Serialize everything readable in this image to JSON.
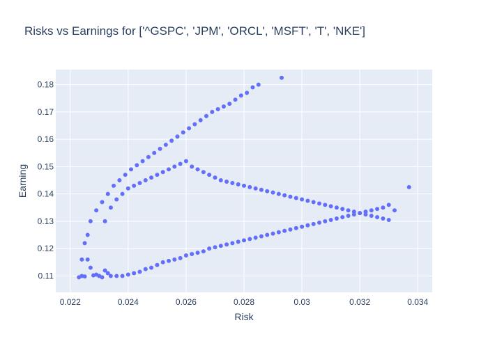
{
  "chart_data": {
    "type": "scatter",
    "title": "Risks vs Earnings for ['^GSPC', 'JPM', 'ORCL', 'MSFT', 'T', 'NKE']",
    "xlabel": "Risk",
    "ylabel": "Earning",
    "xlim": [
      0.0215,
      0.0345
    ],
    "ylim": [
      0.104,
      0.1855
    ],
    "x_ticks": [
      0.022,
      0.024,
      0.026,
      0.028,
      0.03,
      0.032,
      0.034
    ],
    "x_tick_labels": [
      "0.022",
      "0.024",
      "0.026",
      "0.028",
      "0.03",
      "0.032",
      "0.034"
    ],
    "y_ticks": [
      0.11,
      0.12,
      0.13,
      0.14,
      0.15,
      0.16,
      0.17,
      0.18
    ],
    "y_tick_labels": [
      "0.11",
      "0.12",
      "0.13",
      "0.14",
      "0.15",
      "0.16",
      "0.17",
      "0.18"
    ],
    "grid": true,
    "marker_color": "#636efa",
    "plot_background": "#e5ecf6",
    "series": [
      {
        "x": [
          0.0223,
          0.0224,
          0.0225,
          0.0226,
          0.0227,
          0.0228,
          0.0229,
          0.023,
          0.0231,
          0.0232,
          0.0233,
          0.0234,
          0.0236,
          0.0238,
          0.024,
          0.0242,
          0.0244,
          0.0246,
          0.0248,
          0.025,
          0.0252,
          0.0254,
          0.0256,
          0.0258,
          0.026,
          0.0262,
          0.0264,
          0.0266,
          0.0268,
          0.027,
          0.0272,
          0.0274,
          0.0276,
          0.0278,
          0.028,
          0.0282,
          0.0284,
          0.0286,
          0.0288,
          0.029,
          0.0292,
          0.0294,
          0.0296,
          0.0298,
          0.03,
          0.0302,
          0.0304,
          0.0306,
          0.0308,
          0.031,
          0.0312,
          0.0314,
          0.0316,
          0.0318,
          0.032,
          0.0322,
          0.0324,
          0.0326,
          0.0328,
          0.033,
          0.0332,
          0.0337,
          0.0293,
          0.0285,
          0.0283,
          0.0281,
          0.0279,
          0.0277,
          0.0275,
          0.0273,
          0.0271,
          0.0269,
          0.0267,
          0.0265,
          0.0263,
          0.0261,
          0.0259,
          0.0257,
          0.0255,
          0.0253,
          0.0251,
          0.0249,
          0.0247,
          0.0245,
          0.0243,
          0.0241,
          0.0239,
          0.0237,
          0.0235,
          0.0233,
          0.0231,
          0.0229,
          0.0227,
          0.0226,
          0.0225,
          0.0224,
          0.0232,
          0.0234,
          0.0236,
          0.0238,
          0.024,
          0.0242,
          0.0244,
          0.0246,
          0.0248,
          0.025,
          0.0252,
          0.0254,
          0.0256,
          0.0258,
          0.026,
          0.0262,
          0.0264,
          0.0266,
          0.0268,
          0.027,
          0.0272,
          0.0274,
          0.0276,
          0.0278,
          0.028,
          0.0282,
          0.0284,
          0.0286,
          0.0288,
          0.029,
          0.0292,
          0.0294,
          0.0296,
          0.0298,
          0.03,
          0.0302,
          0.0304,
          0.0306,
          0.0308,
          0.031,
          0.0312,
          0.0314,
          0.0316,
          0.0318,
          0.032,
          0.0322,
          0.0324,
          0.0326,
          0.0328,
          0.033
        ],
        "y": [
          0.1095,
          0.11,
          0.1098,
          0.116,
          0.113,
          0.1102,
          0.1105,
          0.11,
          0.1095,
          0.112,
          0.111,
          0.11,
          0.11,
          0.11,
          0.1105,
          0.111,
          0.1115,
          0.1125,
          0.113,
          0.114,
          0.115,
          0.1155,
          0.116,
          0.1165,
          0.1175,
          0.118,
          0.1185,
          0.119,
          0.12,
          0.1205,
          0.121,
          0.1215,
          0.122,
          0.1225,
          0.123,
          0.1235,
          0.124,
          0.1245,
          0.125,
          0.1255,
          0.126,
          0.1265,
          0.127,
          0.1275,
          0.128,
          0.1285,
          0.129,
          0.1295,
          0.13,
          0.1305,
          0.131,
          0.1315,
          0.132,
          0.1325,
          0.133,
          0.1335,
          0.134,
          0.1345,
          0.135,
          0.136,
          0.134,
          0.1425,
          0.1825,
          0.18,
          0.179,
          0.177,
          0.176,
          0.1745,
          0.173,
          0.172,
          0.171,
          0.17,
          0.1685,
          0.167,
          0.1655,
          0.164,
          0.1625,
          0.161,
          0.1595,
          0.158,
          0.1565,
          0.155,
          0.1535,
          0.152,
          0.1505,
          0.149,
          0.147,
          0.145,
          0.143,
          0.14,
          0.137,
          0.134,
          0.13,
          0.125,
          0.122,
          0.116,
          0.13,
          0.135,
          0.138,
          0.14,
          0.142,
          0.143,
          0.144,
          0.145,
          0.146,
          0.147,
          0.148,
          0.149,
          0.15,
          0.151,
          0.152,
          0.15,
          0.149,
          0.148,
          0.147,
          0.146,
          0.145,
          0.1445,
          0.144,
          0.1435,
          0.143,
          0.1425,
          0.142,
          0.1415,
          0.141,
          0.1405,
          0.14,
          0.1395,
          0.139,
          0.1385,
          0.138,
          0.1375,
          0.137,
          0.1365,
          0.136,
          0.1355,
          0.135,
          0.1345,
          0.134,
          0.1335,
          0.133,
          0.1325,
          0.132,
          0.1315,
          0.131,
          0.1305
        ]
      }
    ]
  }
}
